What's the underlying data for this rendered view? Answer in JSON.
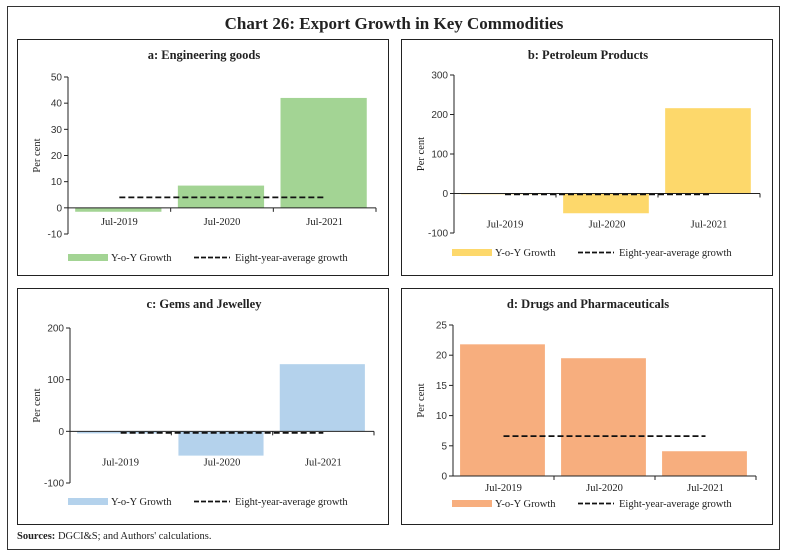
{
  "title": "Chart 26: Export Growth in Key Commodities",
  "sources_label": "Sources:",
  "sources_text": "DGCI&S; and Authors' calculations.",
  "chart_data": [
    {
      "id": "a",
      "type": "bar",
      "title": "a: Engineering goods",
      "ylabel": "Per cent",
      "xlabel": "",
      "categories": [
        "Jul-2019",
        "Jul-2020",
        "Jul-2021"
      ],
      "series": [
        {
          "name": "Y-o-Y Growth",
          "values": [
            -1.5,
            8.5,
            42.0
          ],
          "color": "#a3d494"
        }
      ],
      "average": {
        "name": "Eight-year-average growth",
        "value": 4.0
      },
      "ylim": [
        -10,
        50
      ],
      "yticks": [
        -10,
        0,
        10,
        20,
        30,
        40,
        50
      ],
      "grid": false,
      "legend": "bottom"
    },
    {
      "id": "b",
      "type": "bar",
      "title": "b: Petroleum Products",
      "ylabel": "Per cent",
      "xlabel": "",
      "categories": [
        "Jul-2019",
        "Jul-2020",
        "Jul-2021"
      ],
      "series": [
        {
          "name": "Y-o-Y Growth",
          "values": [
            -2,
            -50,
            216
          ],
          "color": "#fdd86b"
        }
      ],
      "average": {
        "name": "Eight-year-average growth",
        "value": -2
      },
      "ylim": [
        -100,
        300
      ],
      "yticks": [
        -100,
        0,
        100,
        200,
        300
      ],
      "grid": false,
      "legend": "bottom"
    },
    {
      "id": "c",
      "type": "bar",
      "title": "c: Gems and Jewelley",
      "ylabel": "Per cent",
      "xlabel": "",
      "categories": [
        "Jul-2019",
        "Jul-2020",
        "Jul-2021"
      ],
      "series": [
        {
          "name": "Y-o-Y Growth",
          "values": [
            -4,
            -47,
            130
          ],
          "color": "#b4d2ec"
        }
      ],
      "average": {
        "name": "Eight-year-average growth",
        "value": -3
      },
      "ylim": [
        -100,
        200
      ],
      "yticks": [
        -100,
        0,
        100,
        200
      ],
      "grid": false,
      "legend": "bottom"
    },
    {
      "id": "d",
      "type": "bar",
      "title": "d: Drugs and Pharmaceuticals",
      "ylabel": "Per cent",
      "xlabel": "",
      "categories": [
        "Jul-2019",
        "Jul-2020",
        "Jul-2021"
      ],
      "series": [
        {
          "name": "Y-o-Y Growth",
          "values": [
            21.8,
            19.5,
            4.1
          ],
          "color": "#f7ae7e"
        }
      ],
      "average": {
        "name": "Eight-year-average growth",
        "value": 6.6
      },
      "ylim": [
        0,
        25
      ],
      "yticks": [
        0,
        5,
        10,
        15,
        20,
        25
      ],
      "grid": false,
      "legend": "bottom"
    }
  ]
}
